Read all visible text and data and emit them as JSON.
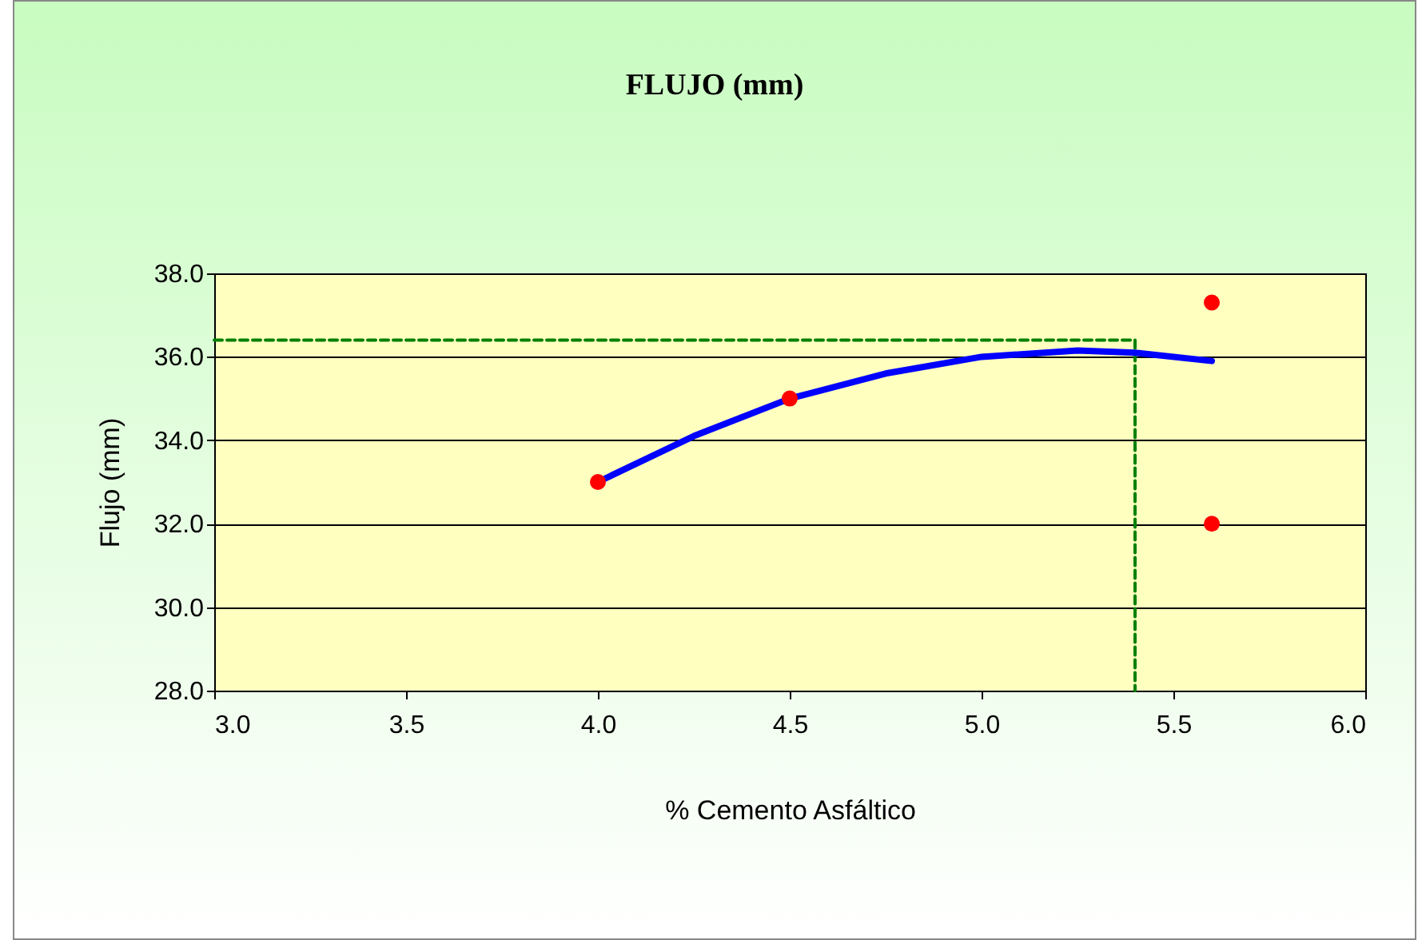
{
  "chart_data": {
    "type": "scatter",
    "title": "FLUJO (mm)",
    "xlabel": "% Cemento Asfáltico",
    "ylabel": "Flujo (mm)",
    "xlim": [
      3.0,
      6.0
    ],
    "xticks": [
      {
        "value": 3,
        "label": "3.0"
      },
      {
        "value": 3.5,
        "label": "3.5"
      },
      {
        "value": 4,
        "label": "4.0"
      },
      {
        "value": 4.5,
        "label": "4.5"
      },
      {
        "value": 5,
        "label": "5.0"
      },
      {
        "value": 5.5,
        "label": "5.5"
      },
      {
        "value": 6,
        "label": "6.0"
      }
    ],
    "ylim": [
      28.0,
      38.0
    ],
    "yticks": [
      {
        "value": 28,
        "label": "28.0"
      },
      {
        "value": 30,
        "label": "30.0"
      },
      {
        "value": 32,
        "label": "32.0"
      },
      {
        "value": 34,
        "label": "34.0"
      },
      {
        "value": 36,
        "label": "36.0"
      },
      {
        "value": 38,
        "label": "38.0"
      }
    ],
    "grid": "y",
    "series": [
      {
        "type": "line",
        "color": "#008000",
        "line_style": "dashed",
        "marker": "none",
        "x": [
          3.0,
          5.4,
          5.4
        ],
        "values": [
          36.4,
          36.4,
          28.0
        ]
      },
      {
        "type": "line",
        "color": "#0000ff",
        "line_style": "solid",
        "marker": "none",
        "x": [
          4.0,
          4.25,
          4.5,
          4.75,
          5.0,
          5.25,
          5.4,
          5.6
        ],
        "values": [
          33.0,
          34.1,
          35.0,
          35.6,
          36.0,
          36.15,
          36.1,
          35.9
        ]
      },
      {
        "type": "scatter",
        "color": "#ff0000",
        "marker": "circle",
        "x": [
          4.0,
          4.5,
          5.6,
          5.6
        ],
        "values": [
          33.0,
          35.0,
          37.3,
          32.0
        ]
      }
    ]
  }
}
